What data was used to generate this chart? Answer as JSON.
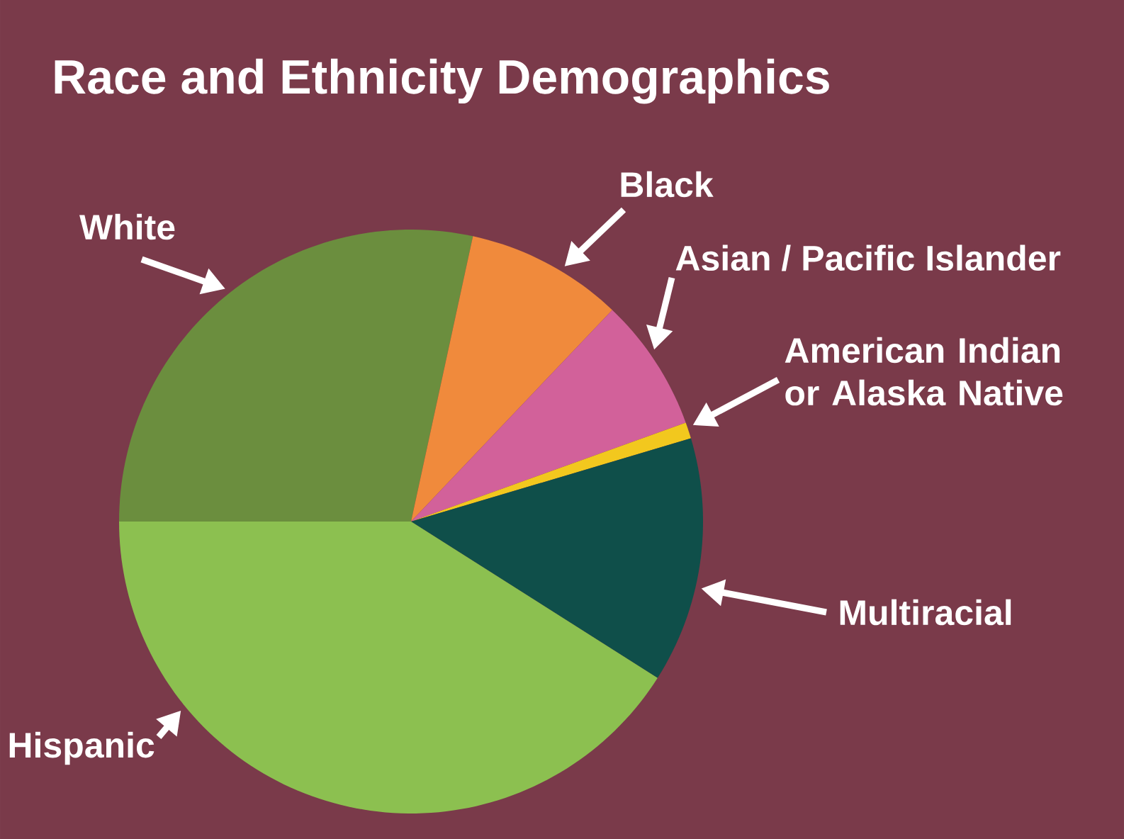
{
  "chart_data": {
    "type": "pie",
    "title": "Race and Ethnicity Demographics",
    "categories": [
      "White",
      "Black",
      "Asian / Pacific Islander",
      "American Indian or Alaska Native",
      "Multiracial",
      "Hispanic"
    ],
    "values": [
      28.4,
      8.7,
      7.4,
      0.9,
      13.6,
      41.0
    ],
    "colors": [
      "#6b8e3e",
      "#f08a3c",
      "#d2619a",
      "#f2c81e",
      "#0f4f4a",
      "#8cc050"
    ]
  }
}
